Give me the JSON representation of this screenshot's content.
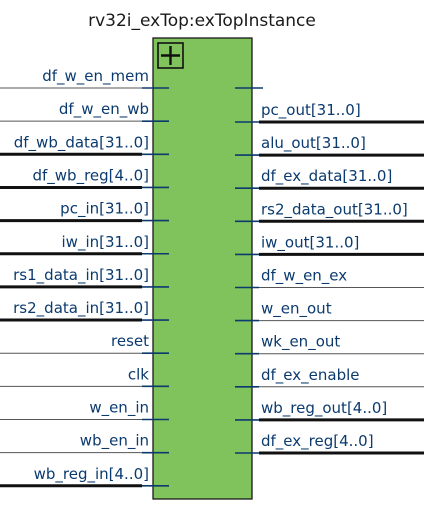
{
  "block": {
    "title": "rv32i_exTop:exTopInstance",
    "fill_color": "#80c25c",
    "expand_icon": "plus-box-icon"
  },
  "inputs": [
    {
      "label": "df_w_en_mem",
      "bus": false
    },
    {
      "label": "df_w_en_wb",
      "bus": false
    },
    {
      "label": "df_wb_data[31..0]",
      "bus": true
    },
    {
      "label": "df_wb_reg[4..0]",
      "bus": true
    },
    {
      "label": "pc_in[31..0]",
      "bus": true
    },
    {
      "label": "iw_in[31..0]",
      "bus": true
    },
    {
      "label": "rs1_data_in[31..0]",
      "bus": true
    },
    {
      "label": "rs2_data_in[31..0]",
      "bus": true
    },
    {
      "label": "reset",
      "bus": false
    },
    {
      "label": "clk",
      "bus": false
    },
    {
      "label": "w_en_in",
      "bus": false
    },
    {
      "label": "wb_en_in",
      "bus": false
    },
    {
      "label": "wb_reg_in[4..0]",
      "bus": true
    }
  ],
  "outputs": [
    {
      "label": "pc_out[31..0]",
      "bus": true
    },
    {
      "label": "alu_out[31..0]",
      "bus": true
    },
    {
      "label": "df_ex_data[31..0]",
      "bus": true
    },
    {
      "label": "rs2_data_out[31..0]",
      "bus": true
    },
    {
      "label": "iw_out[31..0]",
      "bus": true
    },
    {
      "label": "df_w_en_ex",
      "bus": false
    },
    {
      "label": "w_en_out",
      "bus": false
    },
    {
      "label": "wk_en_out",
      "bus": false
    },
    {
      "label": "df_ex_enable",
      "bus": false
    },
    {
      "label": "wb_reg_out[4..0]",
      "bus": true
    },
    {
      "label": "df_ex_reg[4..0]",
      "bus": true
    }
  ]
}
